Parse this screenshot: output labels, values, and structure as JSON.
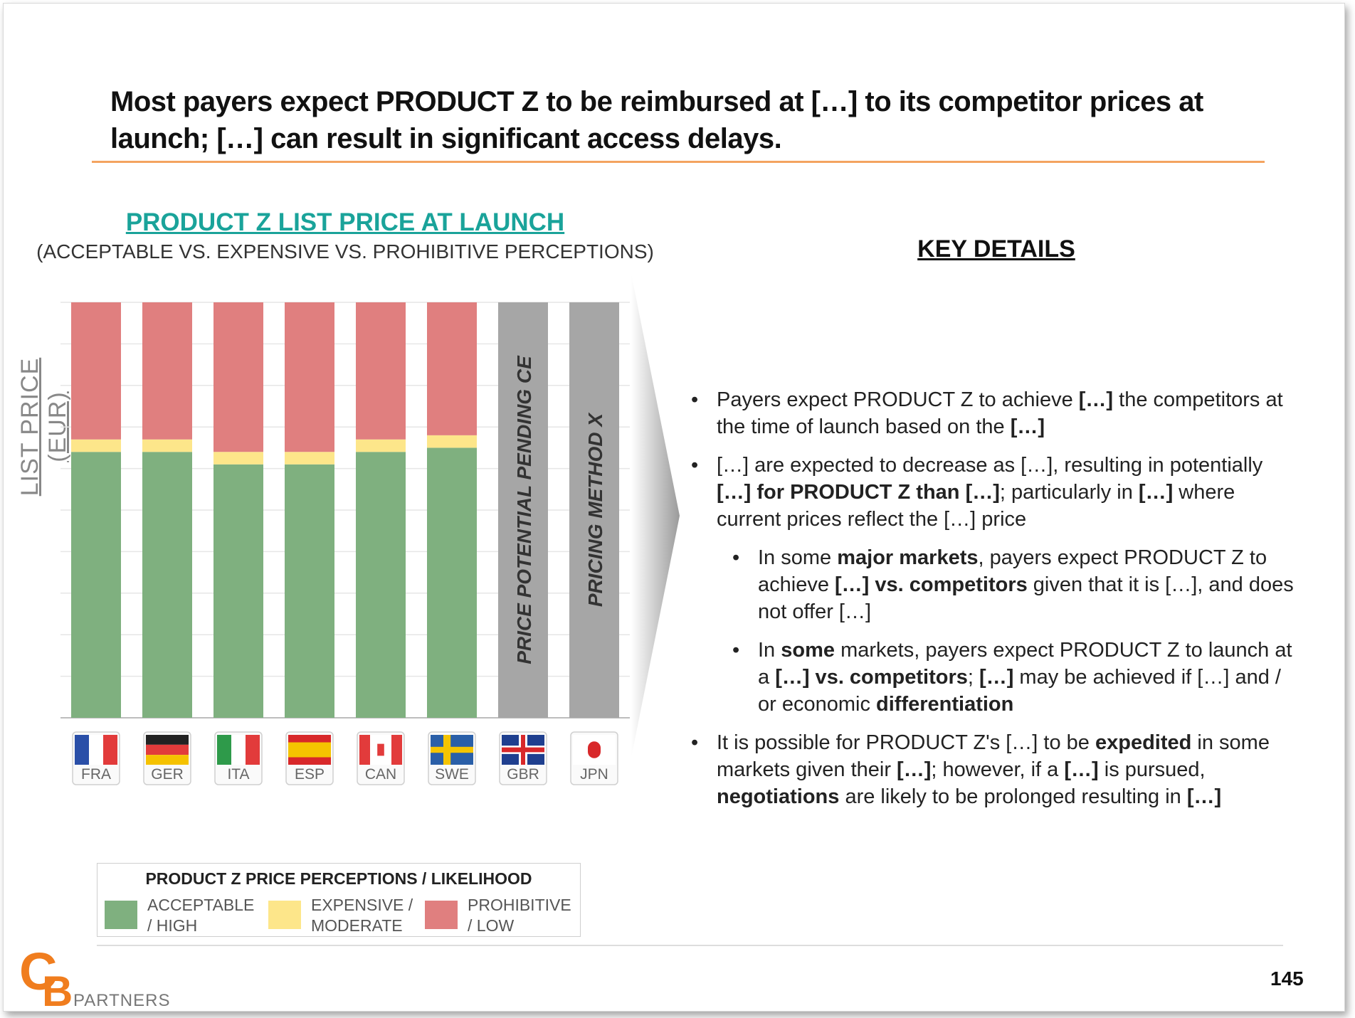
{
  "slide": {
    "title": "Most payers expect PRODUCT Z to be reimbursed at […] to its competitor prices at launch; […] can result in significant access delays.",
    "page_number": "145",
    "logo": {
      "letters": "CB",
      "text": "PARTNERS"
    }
  },
  "chart_header": {
    "title": "PRODUCT Z LIST PRICE AT LAUNCH",
    "subtitle": "(ACCEPTABLE VS. EXPENSIVE VS. PROHIBITIVE PERCEPTIONS)"
  },
  "key_details": {
    "title": "KEY DETAILS",
    "bullets": [
      {
        "level": 1,
        "html": "Payers expect PRODUCT Z to achieve <b>[…]</b> the competitors at the time of launch based on the <b>[…]</b>"
      },
      {
        "level": 1,
        "html": "[…] are expected to decrease as […], resulting in potentially <b>[…] for PRODUCT Z than […]</b>; particularly in <b>[…]</b> where current prices reflect the […] price"
      },
      {
        "level": 2,
        "html": "In some <b>major markets</b>, payers expect PRODUCT Z to achieve <b>[…] vs. competitors</b> given that it is […], and does not offer […]"
      },
      {
        "level": 2,
        "html": "In <b>some</b> markets, payers expect PRODUCT Z to launch at a <b>[…] vs. competitors</b>; <b>[…]</b> may be achieved if […] and / or economic <b>differentiation</b>"
      },
      {
        "level": 1,
        "html": "It is possible for PRODUCT Z's […] to be <b>expedited</b> in some markets given their <b>[…]</b>; however, if a <b>[…]</b> is pursued, <b>negotiations</b> are likely to be prolonged resulting in <b>[…]</b>"
      }
    ]
  },
  "legend": {
    "title": "PRODUCT Z PRICE PERCEPTIONS / LIKELIHOOD",
    "items": [
      {
        "label": "ACCEPTABLE / HIGH",
        "color": "#7fb07f"
      },
      {
        "label": "EXPENSIVE / MODERATE",
        "color": "#fde68a"
      },
      {
        "label": "PROHIBITIVE / LOW",
        "color": "#e07f7f"
      }
    ]
  },
  "chart_data": {
    "type": "bar",
    "stacked": true,
    "ylabel": "LIST PRICE (EUR)",
    "y_ticks_shown": false,
    "grid": true,
    "categories": [
      "FRA",
      "GER",
      "ITA",
      "ESP",
      "CAN",
      "SWE",
      "GBR",
      "JPN"
    ],
    "series": [
      {
        "name": "ACCEPTABLE / HIGH",
        "color": "#7fb07f",
        "values": [
          64,
          64,
          61,
          61,
          64,
          65,
          null,
          null
        ]
      },
      {
        "name": "EXPENSIVE / MODERATE",
        "color": "#fde68a",
        "values": [
          3,
          3,
          3,
          3,
          3,
          3,
          null,
          null
        ]
      },
      {
        "name": "PROHIBITIVE / LOW",
        "color": "#e07f7f",
        "values": [
          33,
          33,
          36,
          36,
          33,
          32,
          null,
          null
        ]
      }
    ],
    "annotations": [
      {
        "category": "GBR",
        "text": "PRICE POTENTIAL PENDING CE",
        "color": "#a6a6a6"
      },
      {
        "category": "JPN",
        "text": "PRICING METHOD X",
        "color": "#a6a6a6"
      }
    ],
    "flag_labels": [
      "FRA",
      "GER",
      "ITA",
      "ESP",
      "CAN",
      "SWE",
      "GBR",
      "JPN"
    ]
  }
}
